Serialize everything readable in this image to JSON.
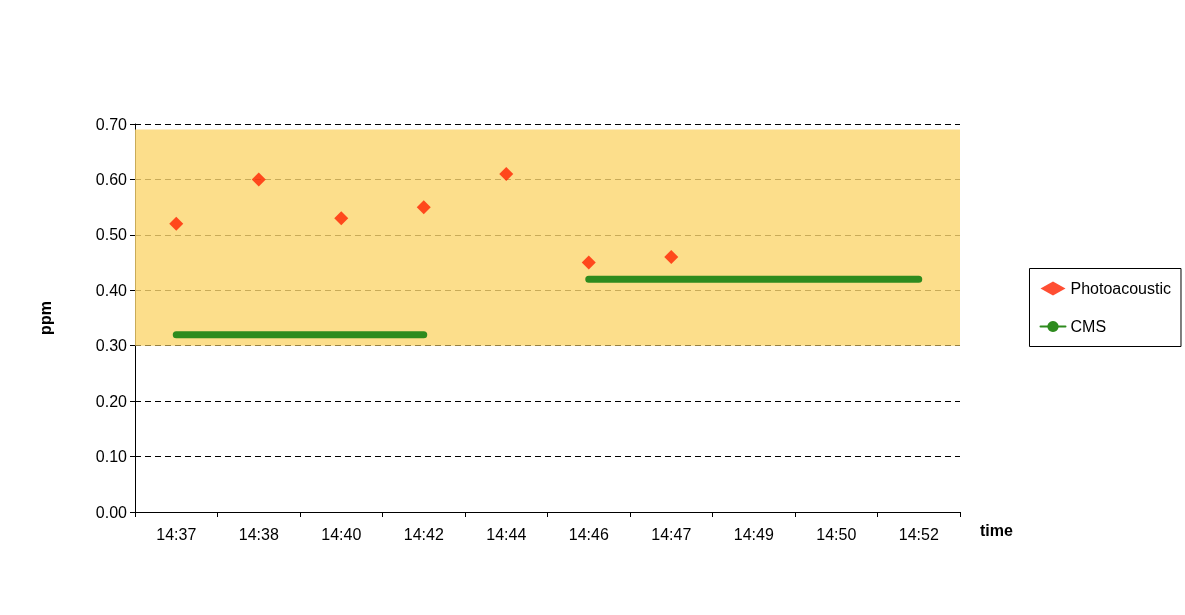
{
  "chart_data": {
    "type": "scatter",
    "xlabel": "time",
    "ylabel": "ppm",
    "categories": [
      "14:37",
      "14:38",
      "14:40",
      "14:42",
      "14:44",
      "14:46",
      "14:47",
      "14:49",
      "14:50",
      "14:52"
    ],
    "series": [
      {
        "name": "Photoacoustic",
        "color": "#ff2200",
        "marker": "diamond",
        "values": [
          0.52,
          0.6,
          0.53,
          0.55,
          0.61,
          0.45,
          0.46,
          null,
          null,
          null
        ]
      },
      {
        "name": "CMS",
        "type": "line",
        "color": "#2e8b1e",
        "marker": "none",
        "line_style": "solid",
        "values": [
          0.32,
          0.32,
          0.32,
          0.32,
          null,
          0.42,
          0.42,
          0.42,
          0.42,
          0.42
        ]
      }
    ],
    "bands": [
      {
        "axis": "y",
        "from": 0.3,
        "to": 0.69,
        "color": "#fbd66e"
      }
    ],
    "ylim": [
      0,
      0.7
    ],
    "yticks": [
      {
        "value": 0,
        "label": "0.00"
      },
      {
        "value": 0.1,
        "label": "0.10"
      },
      {
        "value": 0.2,
        "label": "0.20"
      },
      {
        "value": 0.3,
        "label": "0.30"
      },
      {
        "value": 0.4,
        "label": "0.40"
      },
      {
        "value": 0.5,
        "label": "0.50"
      },
      {
        "value": 0.6,
        "label": "0.60"
      },
      {
        "value": 0.7,
        "label": "0.70"
      }
    ],
    "grid": "y",
    "legend": "right"
  }
}
